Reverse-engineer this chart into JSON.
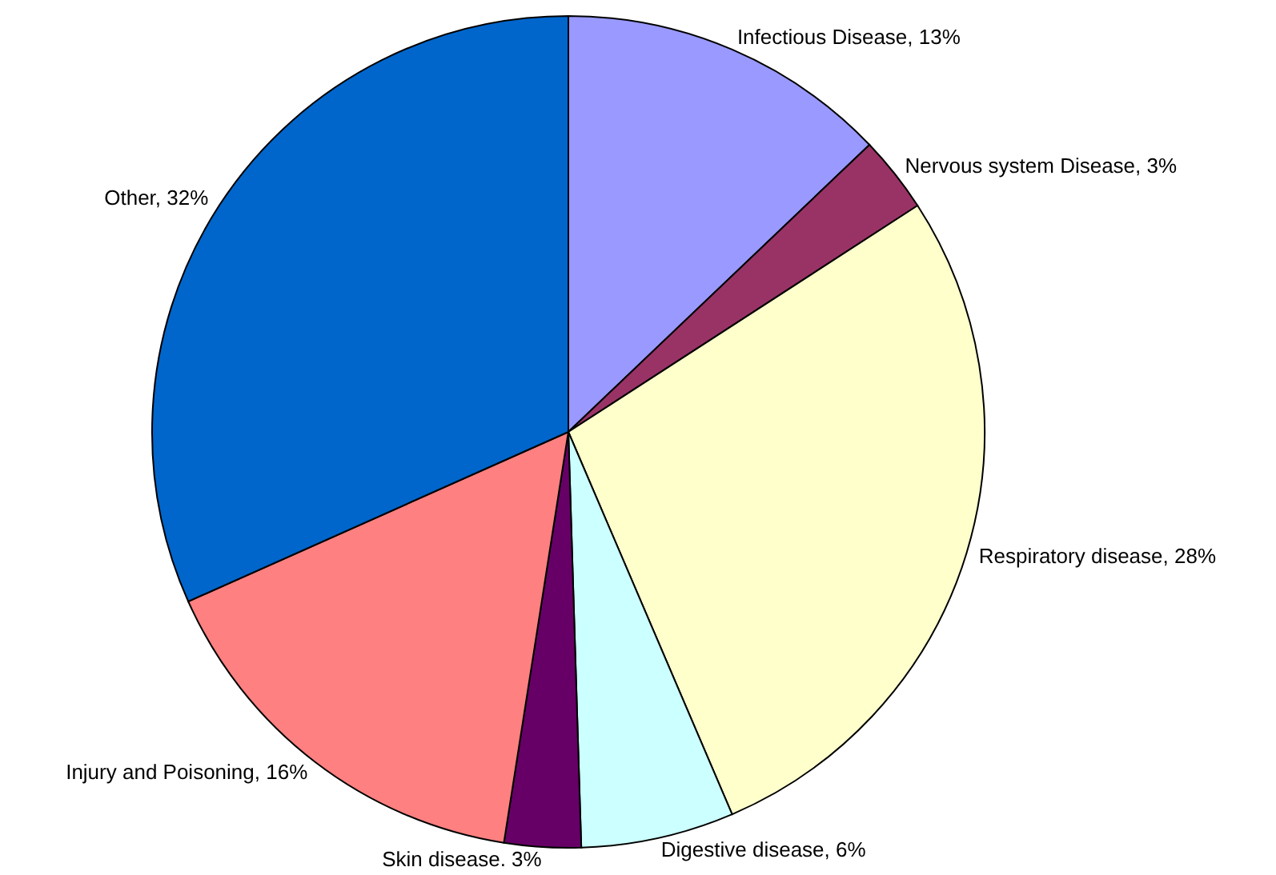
{
  "chart_data": {
    "type": "pie",
    "categories": [
      "Infectious Disease, 13%",
      "Nervous system Disease, 3%",
      "Respiratory disease, 28%",
      "Digestive disease, 6%",
      "Skin disease. 3%",
      "Injury and Poisoning, 16%",
      "Other, 32%"
    ],
    "values": [
      13,
      3,
      28,
      6,
      3,
      16,
      32
    ],
    "colors": [
      "#9999ff",
      "#993366",
      "#ffffcc",
      "#ccffff",
      "#660066",
      "#ff8080",
      "#0066cc"
    ]
  }
}
